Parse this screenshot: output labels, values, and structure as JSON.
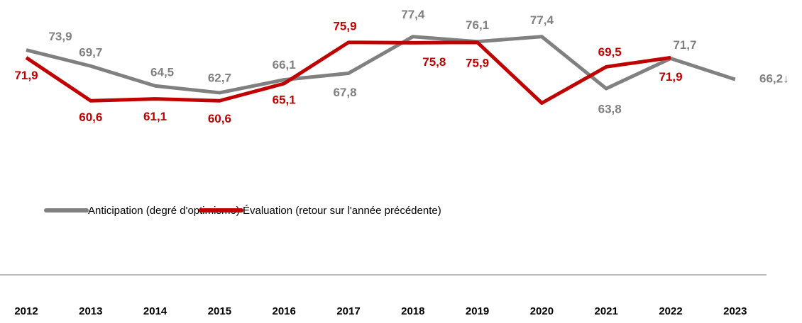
{
  "chart_data": {
    "type": "line",
    "categories": [
      "2012",
      "2013",
      "2014",
      "2015",
      "2016",
      "2017",
      "2018",
      "2019",
      "2020",
      "2021",
      "2022",
      "2023"
    ],
    "ylim": [
      15,
      87
    ],
    "legend": "middle",
    "series": [
      {
        "name": "Anticipation (degré d'optimisme)",
        "color": "#808080",
        "values": [
          73.9,
          69.7,
          64.5,
          62.7,
          66.1,
          67.8,
          77.4,
          76.1,
          77.4,
          63.8,
          71.7,
          66.2
        ],
        "value_labels": [
          "73,9",
          "69,7",
          "64,5",
          "62,7",
          "66,1",
          "67,8",
          "77,4",
          "76,1",
          "77,4",
          "63,8",
          "71,7",
          "66,2↓"
        ]
      },
      {
        "name": "Évaluation (retour sur l'année précédente)",
        "color": "#c00000",
        "values": [
          71.9,
          60.6,
          61.1,
          60.6,
          65.1,
          75.9,
          75.8,
          75.9,
          60.0,
          69.5,
          71.9,
          null
        ],
        "value_labels": [
          "71,9",
          "60,6",
          "61,1",
          "60,6",
          "65,1",
          "75,9",
          "75,8",
          "75,9",
          null,
          "69,5",
          "71,9",
          null
        ]
      }
    ]
  }
}
